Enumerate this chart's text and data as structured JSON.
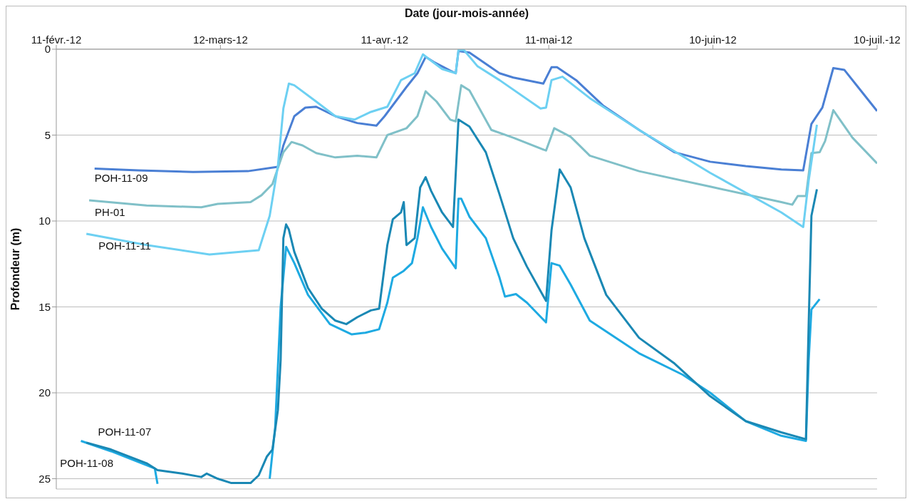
{
  "chart_data": {
    "type": "line",
    "xlabel": "Date (jour-mois-année)",
    "ylabel": "Profondeur (m)",
    "xlim": [
      "2012-02-11",
      "2012-07-10"
    ],
    "xticks": [
      {
        "value": "2012-02-11",
        "label": "11-févr.-12"
      },
      {
        "value": "2012-03-12",
        "label": "12-mars-12"
      },
      {
        "value": "2012-04-11",
        "label": "11-avr.-12"
      },
      {
        "value": "2012-05-11",
        "label": "11-mai-12"
      },
      {
        "value": "2012-06-10",
        "label": "10-juin-12"
      },
      {
        "value": "2012-07-10",
        "label": "10-juil.-12"
      }
    ],
    "ylim": [
      25.6,
      0
    ],
    "yticks": [
      0,
      5,
      10,
      15,
      20,
      25
    ],
    "grid": "y",
    "series": [
      {
        "name": "POH-11-09",
        "color": "#4a7fd4",
        "x": [
          "2012-02-18",
          "2012-02-26",
          "2012-03-07",
          "2012-03-17",
          "2012-03-22T12:00",
          "2012-03-23T12:00",
          "2012-03-25T12:00",
          "2012-03-27T12:00",
          "2012-03-29T12:00",
          "2012-04-02",
          "2012-04-06",
          "2012-04-09T12:00",
          "2012-04-11",
          "2012-04-15",
          "2012-04-17",
          "2012-04-18T12:00",
          "2012-04-20",
          "2012-04-23",
          "2012-04-24",
          "2012-04-24T12:00",
          "2012-04-26T12:00",
          "2012-05-02",
          "2012-05-04T12:00",
          "2012-05-10",
          "2012-05-11T12:00",
          "2012-05-12T12:00",
          "2012-05-16",
          "2012-05-21",
          "2012-05-27T12:00",
          "2012-06-03",
          "2012-06-09T12:00",
          "2012-06-16",
          "2012-06-22T12:00",
          "2012-06-26T12:00",
          "2012-06-28",
          "2012-06-30",
          "2012-07-02",
          "2012-07-04",
          "2012-07-06T12:00",
          "2012-07-10"
        ],
        "values": [
          6.95,
          7.05,
          7.15,
          7.1,
          6.85,
          5.6,
          3.9,
          3.4,
          3.35,
          3.9,
          4.3,
          4.45,
          3.9,
          2.2,
          1.4,
          0.45,
          0.75,
          1.25,
          1.4,
          0.1,
          0.2,
          1.4,
          1.65,
          2.0,
          1.05,
          1.05,
          1.8,
          3.3,
          4.7,
          6.0,
          6.55,
          6.8,
          7.0,
          7.05,
          4.35,
          3.4,
          1.1,
          1.2,
          2.2,
          3.6
        ]
      },
      {
        "name": "PH-01",
        "color": "#80c0c8",
        "x": [
          "2012-02-17",
          "2012-02-27T12:00",
          "2012-03-08T12:00",
          "2012-03-11T12:00",
          "2012-03-17T12:00",
          "2012-03-19T12:00",
          "2012-03-21T12:00",
          "2012-03-23T12:00",
          "2012-03-25",
          "2012-03-27",
          "2012-03-29T12:00",
          "2012-04-02",
          "2012-04-06",
          "2012-04-09T12:00",
          "2012-04-11T12:00",
          "2012-04-15",
          "2012-04-17",
          "2012-04-18T12:00",
          "2012-04-20T12:00",
          "2012-04-23",
          "2012-04-24",
          "2012-04-25",
          "2012-04-26T12:00",
          "2012-04-30T12:00",
          "2012-05-04T12:00",
          "2012-05-10T12:00",
          "2012-05-12",
          "2012-05-15",
          "2012-05-18T12:00",
          "2012-05-27T12:00",
          "2012-06-09T12:00",
          "2012-06-22T12:00",
          "2012-06-24T12:00",
          "2012-06-25T12:00",
          "2012-06-27",
          "2012-06-28",
          "2012-06-29T12:00",
          "2012-06-30T12:00",
          "2012-07-02",
          "2012-07-05T12:00",
          "2012-07-10"
        ],
        "values": [
          8.8,
          9.1,
          9.2,
          9.0,
          8.9,
          8.5,
          7.85,
          6.0,
          5.4,
          5.6,
          6.05,
          6.3,
          6.2,
          6.3,
          5.0,
          4.6,
          3.9,
          2.45,
          3.05,
          4.1,
          4.2,
          2.1,
          2.4,
          4.7,
          5.15,
          5.9,
          4.6,
          5.1,
          6.2,
          7.1,
          8.0,
          8.9,
          9.05,
          8.55,
          8.55,
          6.05,
          6.0,
          5.35,
          3.55,
          5.15,
          6.65
        ]
      },
      {
        "name": "POH-11-11",
        "color": "#6dd0f2",
        "x": [
          "2012-02-16T12:00",
          "2012-02-27T12:00",
          "2012-03-10",
          "2012-03-19",
          "2012-03-21",
          "2012-03-22T12:00",
          "2012-03-23T12:00",
          "2012-03-24T12:00",
          "2012-03-25T12:00",
          "2012-03-29T12:00",
          "2012-04-02",
          "2012-04-05T12:00",
          "2012-04-08T12:00",
          "2012-04-11T12:00",
          "2012-04-14",
          "2012-04-16T12:00",
          "2012-04-18",
          "2012-04-19",
          "2012-04-21T12:00",
          "2012-04-24",
          "2012-04-24T12:00",
          "2012-04-25T12:00",
          "2012-04-28",
          "2012-05-02",
          "2012-05-09T12:00",
          "2012-05-10T12:00",
          "2012-05-11T12:00",
          "2012-05-13T12:00",
          "2012-05-18T12:00",
          "2012-05-27T12:00",
          "2012-06-09T12:00",
          "2012-06-22T12:00",
          "2012-06-26T12:00",
          "2012-06-27T12:00",
          "2012-06-29"
        ],
        "values": [
          10.75,
          11.4,
          11.95,
          11.7,
          9.7,
          6.8,
          3.45,
          2.0,
          2.1,
          3.05,
          3.9,
          4.1,
          3.65,
          3.35,
          1.8,
          1.4,
          0.3,
          0.55,
          1.15,
          1.4,
          0.05,
          0.05,
          1.0,
          1.8,
          3.45,
          3.4,
          1.8,
          1.6,
          2.85,
          4.7,
          7.2,
          9.5,
          10.35,
          7.65,
          4.4
        ]
      },
      {
        "name": "POH-11-07",
        "color": "#1eaae2",
        "x": [
          "2012-02-15T12:00",
          "2012-02-21",
          "2012-02-29",
          "2012-02-29T12:00",
          "2012-03-10",
          "2012-03-21",
          "2012-03-22",
          "2012-03-23",
          "2012-03-24",
          "2012-03-25T12:00",
          "2012-03-28",
          "2012-04-01",
          "2012-04-05",
          "2012-04-07T12:00",
          "2012-04-10",
          "2012-04-11T12:00",
          "2012-04-12T12:00",
          "2012-04-14T12:00",
          "2012-04-16",
          "2012-04-17",
          "2012-04-18",
          "2012-04-19T12:00",
          "2012-04-21T12:00",
          "2012-04-24",
          "2012-04-24T12:00",
          "2012-04-25",
          "2012-04-26T12:00",
          "2012-04-29T12:00",
          "2012-05-02",
          "2012-05-03",
          "2012-05-05",
          "2012-05-07",
          "2012-05-10T12:00",
          "2012-05-11T12:00",
          "2012-05-13",
          "2012-05-15",
          "2012-05-18T12:00",
          "2012-05-27T12:00",
          "2012-06-04T12:00",
          "2012-06-09T12:00",
          "2012-06-16",
          "2012-06-22T12:00",
          "2012-06-27",
          "2012-06-27T12:00",
          "2012-06-28",
          "2012-06-29T12:00"
        ],
        "values": [
          22.8,
          23.4,
          24.4,
          25.3,
          null,
          25.0,
          22.0,
          15.0,
          11.5,
          12.45,
          14.3,
          16.0,
          16.6,
          16.5,
          16.3,
          14.75,
          13.3,
          12.9,
          12.45,
          11.0,
          9.2,
          10.35,
          11.6,
          12.75,
          8.7,
          8.7,
          9.75,
          11.0,
          13.3,
          14.4,
          14.25,
          14.75,
          15.9,
          12.45,
          12.6,
          13.7,
          15.8,
          17.7,
          18.95,
          20.0,
          21.65,
          22.5,
          22.8,
          18.1,
          15.15,
          14.55
        ]
      },
      {
        "name": "POH-11-08",
        "color": "#1a88b4",
        "x": [
          "2012-02-16T12:00",
          "2012-02-21",
          "2012-02-27T12:00",
          "2012-02-29T12:00",
          "2012-03-05",
          "2012-03-08T12:00",
          "2012-03-09T12:00",
          "2012-03-11T12:00",
          "2012-03-14",
          "2012-03-17T12:00",
          "2012-03-19",
          "2012-03-20T12:00",
          "2012-03-21T12:00",
          "2012-03-22T12:00",
          "2012-03-23",
          "2012-03-23T12:00",
          "2012-03-24",
          "2012-03-24T12:00",
          "2012-03-25T12:00",
          "2012-03-28",
          "2012-03-30T12:00",
          "2012-04-02",
          "2012-04-04",
          "2012-04-06",
          "2012-04-08T12:00",
          "2012-04-10",
          "2012-04-11T12:00",
          "2012-04-12T12:00",
          "2012-04-14",
          "2012-04-14T12:00",
          "2012-04-15",
          "2012-04-16T12:00",
          "2012-04-17T12:00",
          "2012-04-18T12:00",
          "2012-04-19T12:00",
          "2012-04-21T12:00",
          "2012-04-23T12:00",
          "2012-04-24T12:00",
          "2012-04-26T12:00",
          "2012-04-29T12:00",
          "2012-05-02",
          "2012-05-04T12:00",
          "2012-05-07",
          "2012-05-10T12:00",
          "2012-05-11T12:00",
          "2012-05-13",
          "2012-05-15",
          "2012-05-17T12:00",
          "2012-05-21T12:00",
          "2012-05-27T12:00",
          "2012-06-03",
          "2012-06-09T12:00",
          "2012-06-16",
          "2012-06-22T12:00",
          "2012-06-27",
          "2012-06-27T12:00",
          "2012-06-28",
          "2012-06-29"
        ],
        "values": [
          22.9,
          23.3,
          24.1,
          24.5,
          24.7,
          24.9,
          24.7,
          25.0,
          25.25,
          25.25,
          24.8,
          23.7,
          23.3,
          21.0,
          18.1,
          11.0,
          10.2,
          10.5,
          11.8,
          13.9,
          15.1,
          15.8,
          16.0,
          15.6,
          15.2,
          15.1,
          11.4,
          9.9,
          9.5,
          8.9,
          11.4,
          11.0,
          8.05,
          7.45,
          8.25,
          9.5,
          10.35,
          4.1,
          4.5,
          6.0,
          8.45,
          11.0,
          12.65,
          14.65,
          10.55,
          7.0,
          8.05,
          11.0,
          14.3,
          16.8,
          18.3,
          20.2,
          21.65,
          22.3,
          22.7,
          16.0,
          9.7,
          8.15
        ]
      }
    ]
  }
}
